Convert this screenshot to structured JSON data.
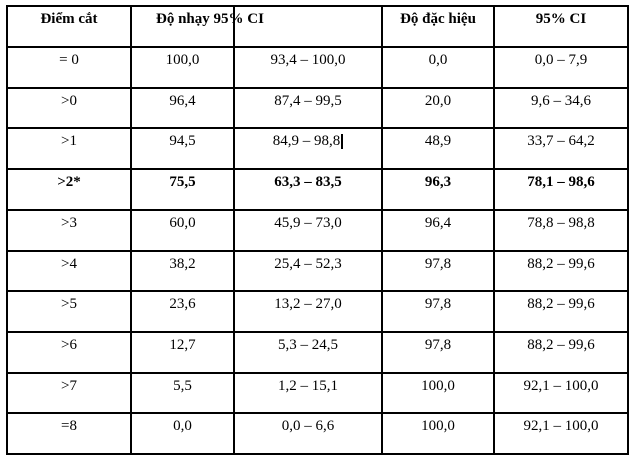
{
  "document": {
    "background_color": "#ffffff",
    "text_color": "#000000",
    "border_color": "#000000"
  },
  "table": {
    "header": {
      "cutoff": "Điểm cắt",
      "sensitivity_ci": "Độ nhạy 95% CI",
      "col3": "",
      "specificity": "Độ đặc hiệu",
      "ci": "95% CI"
    },
    "rows": [
      {
        "cutoff": "= 0",
        "sensitivity": "100,0",
        "sensitivity_ci": "93,4 – 100,0",
        "specificity": "0,0",
        "specificity_ci": "0,0 – 7,9",
        "bold": false,
        "caret": false
      },
      {
        "cutoff": ">0",
        "sensitivity": "96,4",
        "sensitivity_ci": "87,4 – 99,5",
        "specificity": "20,0",
        "specificity_ci": "9,6 – 34,6",
        "bold": false,
        "caret": false
      },
      {
        "cutoff": ">1",
        "sensitivity": "94,5",
        "sensitivity_ci": "84,9 – 98,8",
        "specificity": "48,9",
        "specificity_ci": "33,7 – 64,2",
        "bold": false,
        "caret": true
      },
      {
        "cutoff": ">2*",
        "sensitivity": "75,5",
        "sensitivity_ci": "63,3 – 83,5",
        "specificity": "96,3",
        "specificity_ci": "78,1 – 98,6",
        "bold": true,
        "caret": false
      },
      {
        "cutoff": ">3",
        "sensitivity": "60,0",
        "sensitivity_ci": "45,9 – 73,0",
        "specificity": "96,4",
        "specificity_ci": "78,8 – 98,8",
        "bold": false,
        "caret": false
      },
      {
        "cutoff": ">4",
        "sensitivity": "38,2",
        "sensitivity_ci": "25,4 – 52,3",
        "specificity": "97,8",
        "specificity_ci": "88,2 – 99,6",
        "bold": false,
        "caret": false
      },
      {
        "cutoff": ">5",
        "sensitivity": "23,6",
        "sensitivity_ci": "13,2 – 27,0",
        "specificity": "97,8",
        "specificity_ci": "88,2 – 99,6",
        "bold": false,
        "caret": false
      },
      {
        "cutoff": ">6",
        "sensitivity": "12,7",
        "sensitivity_ci": "5,3 – 24,5",
        "specificity": "97,8",
        "specificity_ci": "88,2 – 99,6",
        "bold": false,
        "caret": false
      },
      {
        "cutoff": ">7",
        "sensitivity": "5,5",
        "sensitivity_ci": "1,2 – 15,1",
        "specificity": "100,0",
        "specificity_ci": "92,1 – 100,0",
        "bold": false,
        "caret": false
      },
      {
        "cutoff": "=8",
        "sensitivity": "0,0",
        "sensitivity_ci": "0,0 – 6,6",
        "specificity": "100,0",
        "specificity_ci": "92,1 – 100,0",
        "bold": false,
        "caret": false
      }
    ]
  }
}
